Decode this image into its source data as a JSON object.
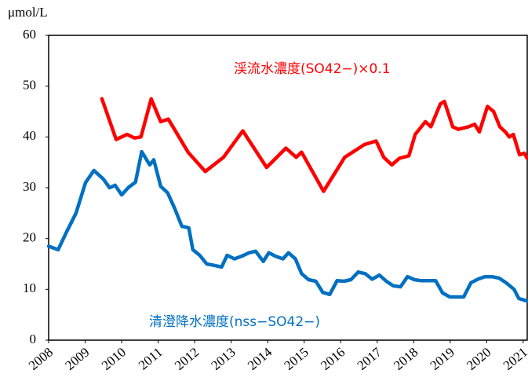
{
  "chart_data": {
    "type": "line",
    "y_unit": "μmol/L",
    "xlim": [
      2008,
      2021.11
    ],
    "xticks": [
      2008,
      2009,
      2010,
      2011,
      2012,
      2013,
      2014,
      2015,
      2016,
      2017,
      2018,
      2019,
      2020,
      2021
    ],
    "ylim": [
      0,
      60
    ],
    "yticks": [
      0,
      10,
      20,
      30,
      40,
      50,
      60
    ],
    "grid": false,
    "series": [
      {
        "name": "渓流水濃度(SO42−)×0.1",
        "color": "#ff0000",
        "x": [
          2009.46,
          2009.85,
          2010.15,
          2010.35,
          2010.53,
          2010.81,
          2011.07,
          2011.28,
          2011.82,
          2012.29,
          2012.79,
          2013.32,
          2013.97,
          2014.5,
          2014.78,
          2014.93,
          2015.53,
          2016.11,
          2016.65,
          2016.97,
          2017.18,
          2017.4,
          2017.61,
          2017.87,
          2018.04,
          2018.32,
          2018.47,
          2018.73,
          2018.84,
          2019.07,
          2019.22,
          2019.5,
          2019.67,
          2019.8,
          2020.02,
          2020.19,
          2020.36,
          2020.51,
          2020.62,
          2020.73,
          2020.9,
          2021.03,
          2021.11
        ],
        "values": [
          47.5,
          39.5,
          40.5,
          39.8,
          40,
          47.5,
          43,
          43.5,
          37,
          33.2,
          36,
          41.2,
          34,
          37.8,
          36,
          37,
          29.3,
          36,
          38.5,
          39.2,
          36,
          34.5,
          35.8,
          36.3,
          40.5,
          43,
          42,
          46.5,
          47,
          42,
          41.5,
          42,
          42.5,
          41,
          46,
          45,
          42,
          41,
          40,
          40.5,
          36.5,
          36.8,
          35.8
        ]
      },
      {
        "name": "清澄降水濃度(nss−SO42−)",
        "color": "#0070c0",
        "x": [
          2008.0,
          2008.26,
          2008.49,
          2008.75,
          2009.01,
          2009.24,
          2009.5,
          2009.67,
          2009.82,
          2010.0,
          2010.19,
          2010.38,
          2010.55,
          2010.77,
          2010.88,
          2011.07,
          2011.26,
          2011.45,
          2011.65,
          2011.84,
          2011.95,
          2012.14,
          2012.33,
          2012.55,
          2012.74,
          2012.89,
          2013.09,
          2013.28,
          2013.49,
          2013.67,
          2013.88,
          2014.03,
          2014.22,
          2014.42,
          2014.57,
          2014.76,
          2014.93,
          2015.12,
          2015.32,
          2015.51,
          2015.7,
          2015.9,
          2016.09,
          2016.28,
          2016.48,
          2016.67,
          2016.86,
          2017.06,
          2017.25,
          2017.44,
          2017.64,
          2017.83,
          2018.02,
          2018.21,
          2018.41,
          2018.6,
          2018.79,
          2018.99,
          2019.18,
          2019.37,
          2019.57,
          2019.76,
          2019.95,
          2020.15,
          2020.34,
          2020.53,
          2020.75,
          2020.88,
          2021.11
        ],
        "values": [
          18.5,
          17.8,
          21.3,
          25,
          31,
          33.4,
          31.7,
          30,
          30.5,
          28.6,
          30.1,
          31.1,
          37.1,
          34.5,
          35.5,
          30.3,
          29,
          26,
          22.4,
          22.1,
          17.8,
          16.7,
          15,
          14.7,
          14.4,
          16.7,
          16,
          16.5,
          17.2,
          17.5,
          15.5,
          17.2,
          16.5,
          16,
          17.2,
          16,
          13.1,
          11.9,
          11.6,
          9.4,
          9,
          11.7,
          11.6,
          11.9,
          13.4,
          13.1,
          12,
          12.8,
          11.6,
          10.7,
          10.5,
          12.5,
          11.9,
          11.7,
          11.7,
          11.7,
          9.3,
          8.5,
          8.5,
          8.5,
          11.3,
          12,
          12.5,
          12.5,
          12.2,
          11.3,
          10,
          8.2,
          7.7
        ]
      }
    ]
  }
}
